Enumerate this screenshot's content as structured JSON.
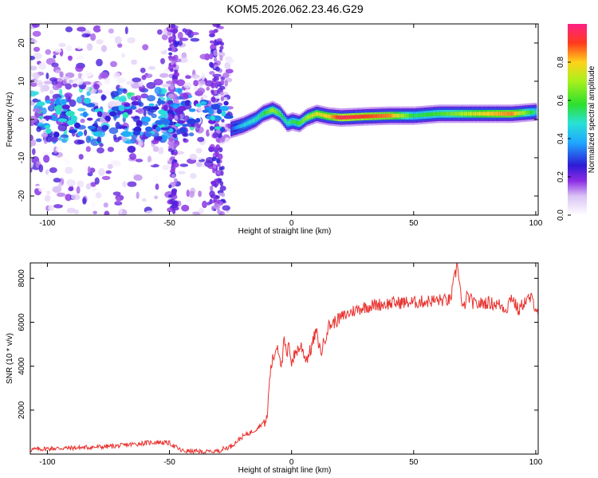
{
  "title": "KOM5.2026.062.23.46.G29",
  "chart_data": [
    {
      "type": "heatmap",
      "title": "",
      "xlabel": "Height of straight line (km)",
      "ylabel": "Frequency (Hz)",
      "xlim": [
        -107,
        101
      ],
      "ylim": [
        -25,
        25
      ],
      "xticks": [
        -100,
        -50,
        0,
        50,
        100
      ],
      "yticks": [
        -20,
        -10,
        0,
        10,
        20
      ],
      "colorbar": {
        "label": "Normalized spectral amplitude",
        "range": [
          0,
          1
        ],
        "ticks": [
          0.0,
          0.2,
          0.4,
          0.6,
          0.8
        ]
      },
      "ridge": {
        "name": "dominant frequency trace",
        "x": [
          -25,
          -20,
          -15,
          -12,
          -8,
          -5,
          -2,
          0,
          3,
          6,
          10,
          15,
          20,
          30,
          40,
          50,
          60,
          70,
          80,
          90,
          100
        ],
        "frequency": [
          -2.5,
          -1.5,
          0,
          1.5,
          2.5,
          1.5,
          -1,
          -0.5,
          -1,
          0.5,
          1.5,
          0.8,
          0.5,
          0.8,
          1,
          1,
          1.5,
          1.5,
          1.5,
          1.5,
          2
        ],
        "amplitude": [
          0.3,
          0.45,
          0.5,
          0.55,
          0.7,
          0.6,
          0.5,
          0.55,
          0.6,
          0.7,
          0.75,
          0.8,
          0.95,
          0.9,
          0.85,
          0.55,
          0.6,
          0.7,
          0.8,
          0.85,
          0.5
        ]
      },
      "noisy_cluster": {
        "name": "low-level scattered energy",
        "x_range": [
          -107,
          -25
        ],
        "frequency_range": [
          -25,
          25
        ],
        "amplitude_range": [
          0.0,
          0.5
        ]
      }
    },
    {
      "type": "line",
      "title": "",
      "xlabel": "Height of straight line (km)",
      "ylabel": "SNR (10 * v/v)",
      "xlim": [
        -107,
        101
      ],
      "ylim": [
        0,
        8700
      ],
      "xticks": [
        -100,
        -50,
        0,
        50,
        100
      ],
      "yticks": [
        2000,
        4000,
        6000,
        8000
      ],
      "color": "#e8322e",
      "series": [
        {
          "name": "SNR",
          "x": [
            -107,
            -100,
            -90,
            -80,
            -75,
            -70,
            -65,
            -60,
            -55,
            -50,
            -45,
            -40,
            -35,
            -30,
            -25,
            -20,
            -15,
            -12,
            -10,
            -9,
            -8,
            -7,
            -6,
            -5,
            -4,
            -3,
            -2,
            -1,
            0,
            2,
            4,
            6,
            8,
            10,
            12,
            15,
            20,
            25,
            30,
            35,
            40,
            45,
            50,
            55,
            60,
            65,
            68,
            70,
            72,
            75,
            80,
            85,
            88,
            90,
            93,
            95,
            98,
            101
          ],
          "y": [
            200,
            250,
            280,
            320,
            350,
            380,
            450,
            500,
            550,
            500,
            150,
            120,
            100,
            150,
            350,
            800,
            1100,
            1400,
            1600,
            3500,
            4200,
            4500,
            5000,
            4600,
            4000,
            5200,
            4400,
            5000,
            4200,
            4700,
            4900,
            4300,
            4800,
            5600,
            4600,
            5800,
            6200,
            6500,
            6700,
            6800,
            6850,
            6900,
            6900,
            6950,
            7000,
            7000,
            8700,
            6500,
            7200,
            6800,
            6900,
            6800,
            6600,
            7200,
            6500,
            6900,
            7100,
            6500
          ]
        }
      ]
    }
  ]
}
